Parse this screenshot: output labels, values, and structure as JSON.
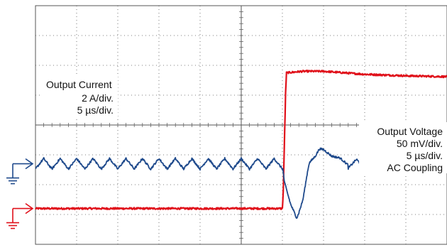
{
  "chart_data": {
    "type": "line",
    "grid": true,
    "grid_divisions": {
      "x": 10,
      "y": 8
    },
    "annotations": {
      "current": [
        "Output Current",
        "2 A/div.",
        "5 µs/div."
      ],
      "voltage": [
        "Output Voltage",
        "50 mV/div.",
        "5 µs/div.",
        "AC Coupling"
      ]
    },
    "colors": {
      "current": "#e0101a",
      "voltage": "#1f4a8c",
      "grid": "#555555"
    },
    "x": {
      "unit_div": "5 µs/div.",
      "range_div": [
        0,
        10
      ]
    },
    "series": [
      {
        "channel": "current",
        "marker": "red-ground-arrow",
        "scale": "2 A/div.",
        "ylim_div": [
          -1.2,
          6.8
        ],
        "points_div": [
          [
            0,
            0.0
          ],
          [
            6.0,
            0.0
          ],
          [
            6.02,
            0.5
          ],
          [
            6.08,
            4.0
          ],
          [
            6.1,
            4.55
          ],
          [
            6.5,
            4.6
          ],
          [
            7.0,
            4.6
          ],
          [
            8.0,
            4.5
          ],
          [
            9.0,
            4.45
          ],
          [
            10,
            4.42
          ]
        ]
      },
      {
        "channel": "voltage",
        "marker": "blue-ground-arrow",
        "scale": "50 mV/div.",
        "ylim_div": [
          -2.7,
          5.3
        ],
        "ripple_period_div": 0.4,
        "ripple_amplitude_div": 0.35,
        "points_div": [
          [
            0,
            0.0
          ],
          [
            6.0,
            0.0
          ],
          [
            6.05,
            -0.6
          ],
          [
            6.2,
            -1.4
          ],
          [
            6.35,
            -1.8
          ],
          [
            6.5,
            -1.2
          ],
          [
            6.65,
            0.0
          ],
          [
            6.9,
            0.5
          ],
          [
            7.2,
            0.3
          ],
          [
            7.6,
            0.0
          ],
          [
            8.2,
            0.0
          ],
          [
            10,
            0.0
          ]
        ]
      }
    ]
  }
}
